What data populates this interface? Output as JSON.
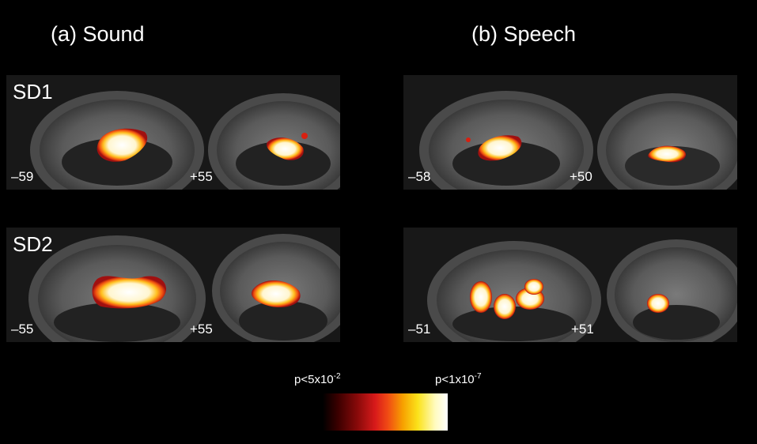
{
  "panels": {
    "a_title": "(a) Sound",
    "b_title": "(b) Speech"
  },
  "subjects": {
    "sd1": "SD1",
    "sd2": "SD2"
  },
  "coords": {
    "a_sd1_left": "–59",
    "a_sd1_right": "+55",
    "b_sd1_left": "–58",
    "b_sd1_right": "+50",
    "a_sd2_left": "–55",
    "a_sd2_right": "+55",
    "b_sd2_left": "–51",
    "b_sd2_right": "+51"
  },
  "colorbar": {
    "low_prefix": "p<5x10",
    "low_exp": "-2",
    "high_prefix": "p<1x10",
    "high_exp": "-7"
  }
}
